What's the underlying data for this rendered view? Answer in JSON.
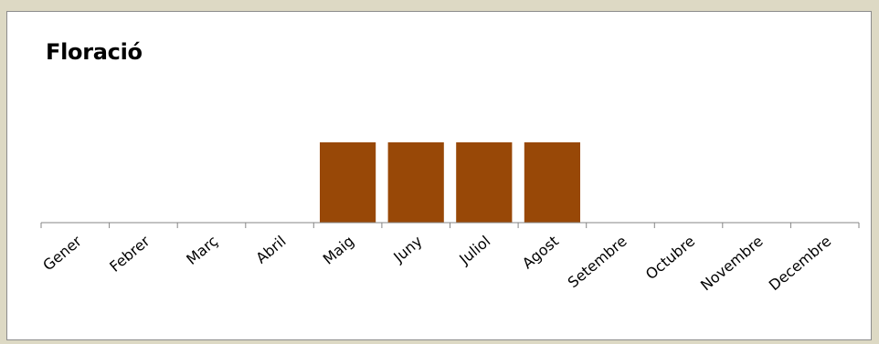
{
  "chart_data": {
    "type": "bar",
    "title": "Floració",
    "xlabel": "",
    "ylabel": "",
    "categories": [
      "Gener",
      "Febrer",
      "Març",
      "Abril",
      "Maig",
      "Juny",
      "Juliol",
      "Agost",
      "Setembre",
      "Octubre",
      "Novembre",
      "Decembre"
    ],
    "values": [
      0,
      0,
      0,
      0,
      1,
      1,
      1,
      1,
      0,
      0,
      0,
      0
    ],
    "ylim": [
      0,
      1
    ],
    "grid": false,
    "legend": "none",
    "bar_color": "#984807",
    "axis_color": "#868686"
  }
}
